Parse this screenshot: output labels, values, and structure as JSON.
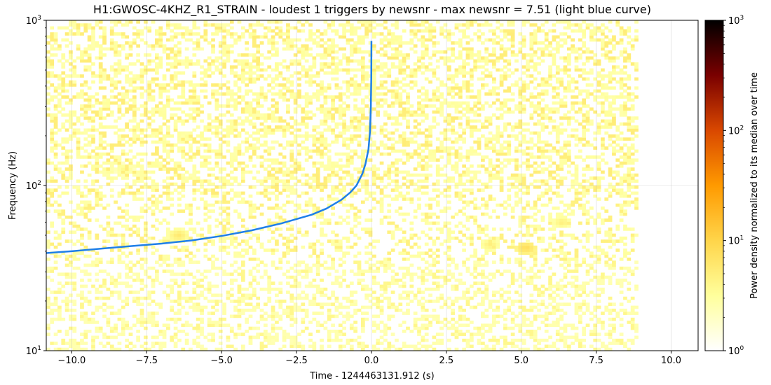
{
  "chart_data": {
    "type": "heatmap",
    "title": "H1:GWOSC-4KHZ_R1_STRAIN - loudest 1 triggers by newsnr - max newsnr = 7.51 (light blue curve)",
    "xlabel": "Time - 1244463131.912 (s)",
    "ylabel": "Frequency (Hz)",
    "colorbar_label": "Power density normalized to its median over time",
    "xlim": [
      -10.85,
      10.9
    ],
    "ylim": [
      10,
      1000
    ],
    "yscale": "log",
    "grid": true,
    "x_ticks": [
      -10,
      -7.5,
      -5,
      -2.5,
      0,
      2.5,
      5,
      7.5,
      10
    ],
    "x_tick_labels": [
      "−10.0",
      "−7.5",
      "−5.0",
      "−2.5",
      "0.0",
      "2.5",
      "5.0",
      "7.5",
      "10.0"
    ],
    "y_ticks": [
      10,
      100,
      1000
    ],
    "y_tick_labels": [
      {
        "base": "10",
        "exp": "1"
      },
      {
        "base": "10",
        "exp": "2"
      },
      {
        "base": "10",
        "exp": "3"
      }
    ],
    "colorbar": {
      "scale": "log",
      "range": [
        1,
        1000
      ],
      "colormap": "afmhot_r",
      "stops": [
        "#ffffff",
        "#ffff9c",
        "#ffd54a",
        "#ff9a00",
        "#d94800",
        "#7a0000",
        "#000000"
      ],
      "ticks": [
        1,
        10,
        100,
        1000
      ],
      "tick_labels": [
        {
          "base": "10",
          "exp": "0"
        },
        {
          "base": "10",
          "exp": "1"
        },
        {
          "base": "10",
          "exp": "2"
        },
        {
          "base": "10",
          "exp": "3"
        }
      ]
    },
    "spectrogram_time_range": [
      -10.85,
      8.85
    ],
    "spectrogram_freq_range": [
      10,
      1000
    ],
    "hotspots": [
      {
        "t": -6.5,
        "f": 50,
        "power": 6
      },
      {
        "t": 5.1,
        "f": 42,
        "power": 8
      },
      {
        "t": 6.3,
        "f": 60,
        "power": 5
      },
      {
        "t": -8.3,
        "f": 125,
        "power": 4
      },
      {
        "t": 3.9,
        "f": 44,
        "power": 5
      }
    ],
    "trigger_curve": {
      "name": "light blue curve",
      "color": "#1f7fe8",
      "t_coalescence": 0.0,
      "points": [
        [
          -10.85,
          39
        ],
        [
          -10.0,
          40
        ],
        [
          -9.0,
          41.5
        ],
        [
          -8.0,
          43
        ],
        [
          -7.0,
          44.5
        ],
        [
          -6.0,
          46.5
        ],
        [
          -5.0,
          49.5
        ],
        [
          -4.0,
          53.5
        ],
        [
          -3.0,
          59
        ],
        [
          -2.0,
          66.5
        ],
        [
          -1.5,
          72.5
        ],
        [
          -1.0,
          82
        ],
        [
          -0.7,
          91
        ],
        [
          -0.5,
          100
        ],
        [
          -0.3,
          118
        ],
        [
          -0.2,
          135
        ],
        [
          -0.1,
          165
        ],
        [
          -0.05,
          210
        ],
        [
          -0.02,
          300
        ],
        [
          -0.005,
          450
        ],
        [
          0.0,
          750
        ]
      ]
    }
  }
}
